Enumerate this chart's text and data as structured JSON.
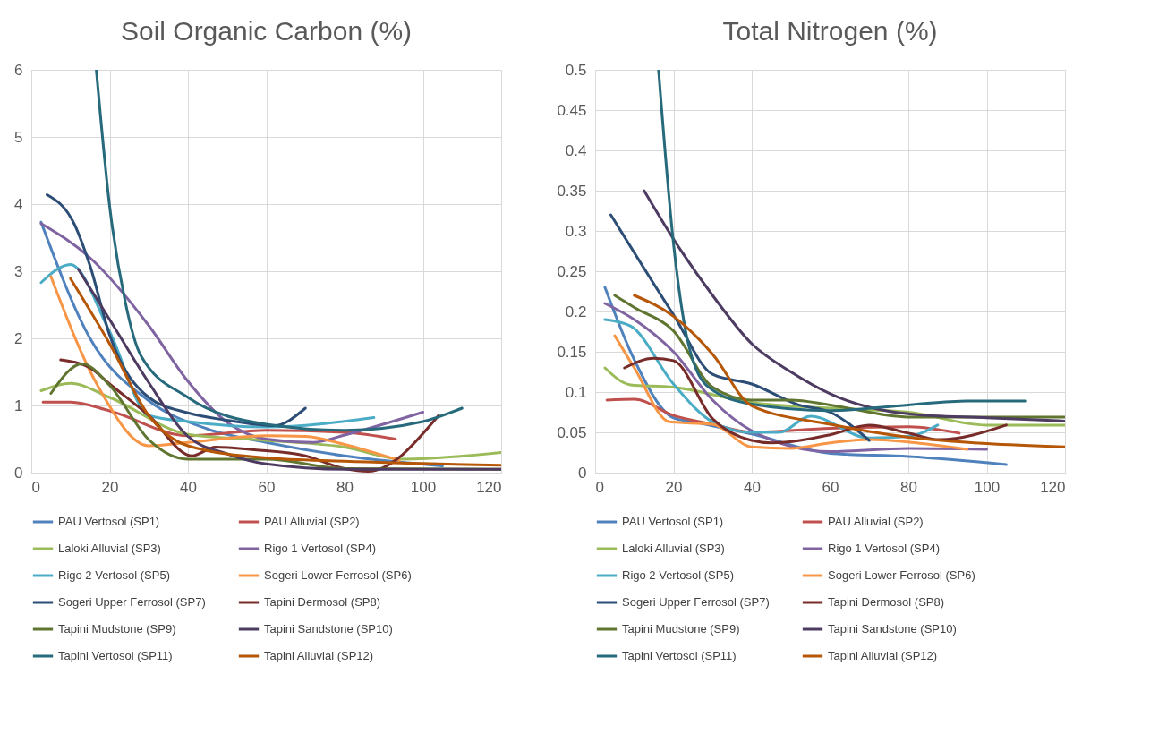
{
  "chart_data": [
    {
      "type": "line",
      "title": "Soil Organic Carbon (%)",
      "xlim": [
        0,
        120
      ],
      "xticks": [
        0,
        20,
        40,
        60,
        80,
        100,
        120
      ],
      "ylim": [
        0,
        6
      ],
      "yticks": [
        0,
        1,
        2,
        3,
        4,
        5,
        6
      ],
      "grid": true,
      "legend": "bottom",
      "series": [
        {
          "name": "PAU Vertosol (SP1)",
          "color": "#4f81bd",
          "x": [
            2.5,
            15,
            30,
            45,
            60,
            80,
            105
          ],
          "values": [
            3.73,
            2.0,
            1.07,
            0.65,
            0.45,
            0.25,
            0.1
          ]
        },
        {
          "name": "PAU Alluvial (SP2)",
          "color": "#c0504d",
          "x": [
            3,
            10,
            20,
            40,
            60,
            80,
            93
          ],
          "values": [
            1.05,
            1.05,
            0.92,
            0.55,
            0.63,
            0.6,
            0.5
          ]
        },
        {
          "name": "Laloki Alluvial (SP3)",
          "color": "#9bbb59",
          "x": [
            2.5,
            10,
            20,
            40,
            60,
            80,
            95,
            120
          ],
          "values": [
            1.22,
            1.33,
            1.12,
            0.57,
            0.48,
            0.38,
            0.2,
            0.3
          ]
        },
        {
          "name": "Rigo 1 Vertosol (SP4)",
          "color": "#8064a2",
          "x": [
            2.5,
            15,
            30,
            40,
            50,
            60,
            72,
            80,
            100
          ],
          "values": [
            3.71,
            3.2,
            2.19,
            1.36,
            0.75,
            0.5,
            0.45,
            0.56,
            0.9
          ]
        },
        {
          "name": "Rigo 2 Vertosol (SP5)",
          "color": "#4bacc6",
          "x": [
            2.5,
            10,
            20,
            30,
            40,
            60,
            87.5
          ],
          "values": [
            2.83,
            3.1,
            2.1,
            0.85,
            0.76,
            0.68,
            0.82
          ]
        },
        {
          "name": "Sogeri Lower Ferrosol (SP6)",
          "color": "#f79646",
          "x": [
            5,
            17,
            30,
            40,
            60,
            70,
            80,
            94
          ],
          "values": [
            2.92,
            1.29,
            0.4,
            0.45,
            0.55,
            0.54,
            0.42,
            0.18
          ]
        },
        {
          "name": "Sogeri Upper Ferrosol (SP7)",
          "color": "#2c4d75",
          "x": [
            4,
            11,
            15,
            20,
            30,
            40,
            50,
            62,
            70
          ],
          "values": [
            4.14,
            3.7,
            3.08,
            2.05,
            1.12,
            0.89,
            0.78,
            0.7,
            0.96
          ]
        },
        {
          "name": "Tapini Dermosol (SP8)",
          "color": "#772c2a",
          "x": [
            7.5,
            15,
            20,
            30,
            41,
            47,
            57,
            70,
            80,
            86,
            104
          ],
          "values": [
            1.68,
            1.56,
            1.32,
            0.85,
            0.25,
            0.38,
            0.34,
            0.25,
            0.06,
            0.02,
            0.85
          ]
        },
        {
          "name": "Tapini Mudstone (SP9)",
          "color": "#5f7530",
          "x": [
            5,
            13,
            20,
            30,
            40,
            60,
            80,
            120
          ],
          "values": [
            1.18,
            1.62,
            1.3,
            0.49,
            0.2,
            0.2,
            0.06,
            0.05
          ]
        },
        {
          "name": "Tapini Sandstone (SP10)",
          "color": "#4d3b62",
          "x": [
            12,
            20,
            30,
            40,
            50,
            60,
            80,
            120
          ],
          "values": [
            3.03,
            2.28,
            1.34,
            0.54,
            0.28,
            0.13,
            0.05,
            0.05
          ]
        },
        {
          "name": "Tapini Vertosol (SP11)",
          "color": "#276a7c",
          "x": [
            16.6,
            20,
            24,
            28,
            40,
            60,
            80,
            100,
            110
          ],
          "values": [
            6,
            3.97,
            2.54,
            1.74,
            1.12,
            0.72,
            0.63,
            0.76,
            0.96
          ]
        },
        {
          "name": "Tapini Alluvial (SP12)",
          "color": "#b65708",
          "x": [
            10,
            20,
            30,
            40,
            60,
            80,
            120
          ],
          "values": [
            2.89,
            1.92,
            0.85,
            0.4,
            0.22,
            0.17,
            0.11
          ]
        }
      ]
    },
    {
      "type": "line",
      "title": "Total Nitrogen (%)",
      "xlim": [
        0,
        120
      ],
      "xticks": [
        0,
        20,
        40,
        60,
        80,
        100,
        120
      ],
      "ylim": [
        0,
        0.5
      ],
      "yticks": [
        0,
        0.05,
        0.1,
        0.15,
        0.2,
        0.25,
        0.3,
        0.35,
        0.4,
        0.45,
        0.5
      ],
      "grid": true,
      "legend": "bottom",
      "series": [
        {
          "name": "PAU Vertosol (SP1)",
          "color": "#4f81bd",
          "x": [
            2.5,
            10,
            20,
            25,
            40,
            60,
            80,
            105
          ],
          "values": [
            0.23,
            0.14,
            0.068,
            0.063,
            0.048,
            0.024,
            0.02,
            0.01
          ]
        },
        {
          "name": "PAU Alluvial (SP2)",
          "color": "#c0504d",
          "x": [
            3,
            10,
            20,
            30,
            40,
            60,
            80,
            93
          ],
          "values": [
            0.09,
            0.091,
            0.071,
            0.06,
            0.05,
            0.055,
            0.057,
            0.049
          ]
        },
        {
          "name": "Laloki Alluvial (SP3)",
          "color": "#9bbb59",
          "x": [
            2.5,
            9,
            20,
            40,
            60,
            80,
            100,
            120
          ],
          "values": [
            0.13,
            0.109,
            0.106,
            0.087,
            0.08,
            0.075,
            0.059,
            0.059
          ]
        },
        {
          "name": "Rigo 1 Vertosol (SP4)",
          "color": "#8064a2",
          "x": [
            2.5,
            10,
            20,
            30,
            40,
            60,
            80,
            100
          ],
          "values": [
            0.21,
            0.19,
            0.15,
            0.09,
            0.052,
            0.026,
            0.03,
            0.029
          ]
        },
        {
          "name": "Rigo 2 Vertosol (SP5)",
          "color": "#4bacc6",
          "x": [
            2.5,
            9,
            20,
            30,
            40,
            47,
            55,
            70,
            80,
            87.5
          ],
          "values": [
            0.19,
            0.182,
            0.11,
            0.063,
            0.05,
            0.05,
            0.07,
            0.043,
            0.045,
            0.059
          ]
        },
        {
          "name": "Sogeri Lower Ferrosol (SP6)",
          "color": "#f79646",
          "x": [
            5,
            10,
            19,
            30,
            40,
            50,
            60,
            70,
            80,
            95
          ],
          "values": [
            0.17,
            0.13,
            0.063,
            0.06,
            0.032,
            0.03,
            0.037,
            0.041,
            0.038,
            0.029
          ]
        },
        {
          "name": "Sogeri Upper Ferrosol (SP7)",
          "color": "#2c4d75",
          "x": [
            4,
            20,
            30,
            40,
            52,
            60,
            70
          ],
          "values": [
            0.32,
            0.196,
            0.122,
            0.11,
            0.084,
            0.075,
            0.04
          ]
        },
        {
          "name": "Tapini Dermosol (SP8)",
          "color": "#772c2a",
          "x": [
            7.5,
            15,
            20,
            30,
            40,
            45,
            60,
            70,
            80,
            88,
            105
          ],
          "values": [
            0.13,
            0.142,
            0.139,
            0.067,
            0.04,
            0.037,
            0.047,
            0.059,
            0.049,
            0.041,
            0.059
          ]
        },
        {
          "name": "Tapini Mudstone (SP9)",
          "color": "#5f7530",
          "x": [
            5,
            10,
            20,
            30,
            40,
            50,
            60,
            80,
            120
          ],
          "values": [
            0.22,
            0.205,
            0.176,
            0.106,
            0.09,
            0.09,
            0.084,
            0.069,
            0.069
          ]
        },
        {
          "name": "Tapini Sandstone (SP10)",
          "color": "#4d3b62",
          "x": [
            12.5,
            20,
            30,
            40,
            50,
            60,
            80,
            100,
            120
          ],
          "values": [
            0.35,
            0.29,
            0.22,
            0.16,
            0.125,
            0.098,
            0.073,
            0.068,
            0.064
          ]
        },
        {
          "name": "Tapini Vertosol (SP11)",
          "color": "#276a7c",
          "x": [
            16.2,
            20,
            23.8,
            29,
            40,
            60,
            80,
            95,
            110
          ],
          "values": [
            0.5,
            0.285,
            0.16,
            0.106,
            0.085,
            0.077,
            0.084,
            0.089,
            0.089
          ]
        },
        {
          "name": "Tapini Alluvial (SP12)",
          "color": "#b65708",
          "x": [
            10,
            20,
            30,
            40,
            60,
            80,
            100,
            120
          ],
          "values": [
            0.22,
            0.194,
            0.147,
            0.083,
            0.06,
            0.044,
            0.036,
            0.032
          ]
        }
      ]
    }
  ]
}
